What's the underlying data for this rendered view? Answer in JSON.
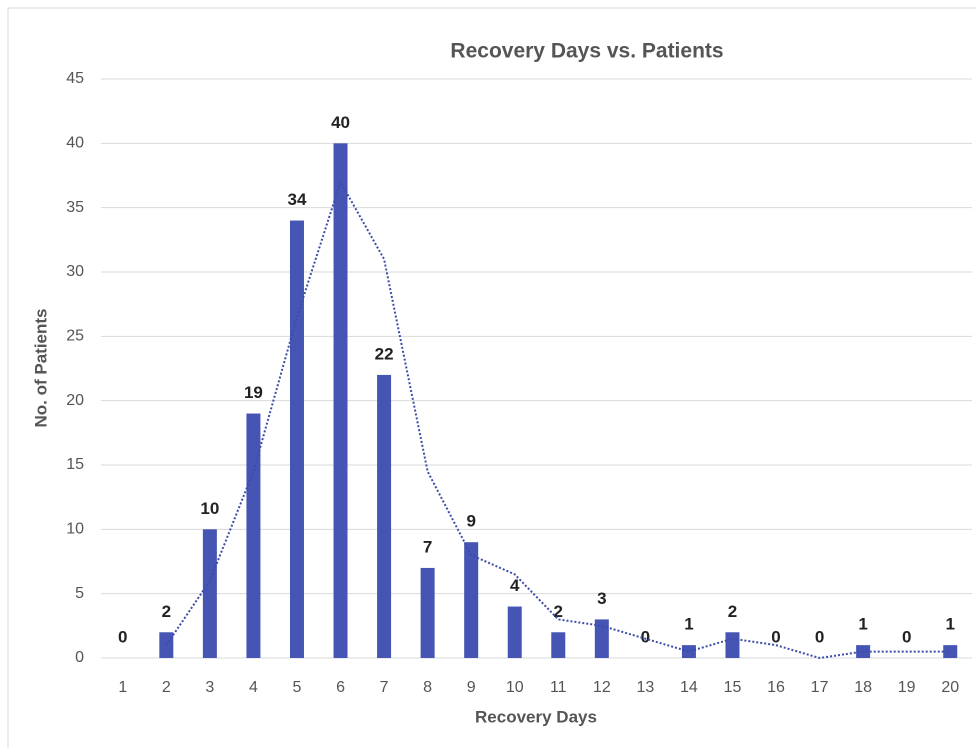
{
  "chart_data": {
    "type": "bar",
    "title": "Recovery Days vs. Patients",
    "x_label": "Recovery Days",
    "y_label": "No. of Patients",
    "categories": [
      1,
      2,
      3,
      4,
      5,
      6,
      7,
      8,
      9,
      10,
      11,
      12,
      13,
      14,
      15,
      16,
      17,
      18,
      19,
      20
    ],
    "values": [
      0,
      2,
      10,
      19,
      34,
      40,
      22,
      7,
      9,
      4,
      2,
      3,
      0,
      1,
      2,
      0,
      0,
      1,
      0,
      1
    ],
    "color": "#4655b4",
    "trendline": {
      "color": "#3c4ca8",
      "values": [
        null,
        1,
        6,
        14.5,
        26.5,
        37,
        31,
        14.5,
        8,
        6.5,
        3,
        2.5,
        1.5,
        0.5,
        1.5,
        1,
        0,
        0.5,
        0.5,
        0.5
      ]
    },
    "ylim": [
      0,
      45
    ],
    "yticks": [
      0,
      5,
      10,
      15,
      20,
      25,
      30,
      35,
      40,
      45
    ],
    "grid": true
  }
}
